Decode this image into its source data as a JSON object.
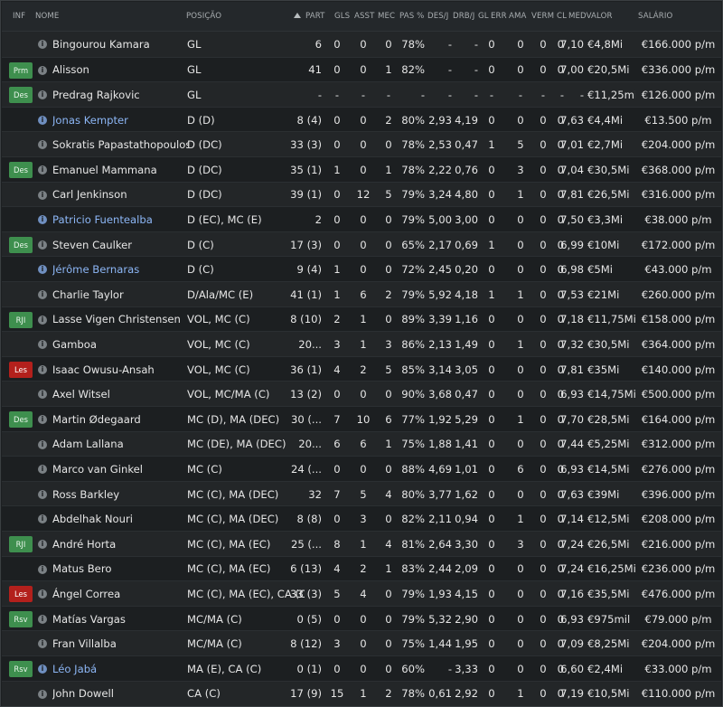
{
  "headers": {
    "inf": "INF",
    "nome": "NOME",
    "posicao": "POSIÇÃO",
    "part": "PART",
    "gls": "GLS",
    "asst": "ASST",
    "mec": "MEC",
    "pas": "PAS %",
    "desj": "DES/J",
    "drbj": "DRB/J",
    "gl": "GL",
    "err": "ERR",
    "ama": "AMA",
    "verm": "VERM",
    "cl": "CL",
    "medvalor": "MEDVALOR",
    "salario": "SALÁRIO"
  },
  "sort": {
    "column": "PART",
    "direction": "ascending"
  },
  "colors": {
    "badge_green": "#3e8f4e",
    "badge_red": "#b3201c",
    "loan_name": "#8cb6f5"
  },
  "players": [
    {
      "badge": "",
      "loan": false,
      "name": "Bingourou Kamara",
      "pos": "GL",
      "part": "6",
      "gls": "0",
      "asst": "0",
      "mec": "0",
      "pas": "78%",
      "desj": "-",
      "drbj": "-",
      "gl": "0",
      "err": "0",
      "ama": "0",
      "verm": "0",
      "cl": "7,10",
      "val": "€4,8Mi",
      "sal": "€166.000 p/m"
    },
    {
      "badge": "Prm",
      "loan": false,
      "name": "Alisson",
      "pos": "GL",
      "part": "41",
      "gls": "0",
      "asst": "0",
      "mec": "1",
      "pas": "82%",
      "desj": "-",
      "drbj": "-",
      "gl": "0",
      "err": "0",
      "ama": "0",
      "verm": "0",
      "cl": "7,00",
      "val": "€20,5Mi",
      "sal": "€336.000 p/m"
    },
    {
      "badge": "Des",
      "loan": false,
      "name": "Predrag Rajkovic",
      "pos": "GL",
      "part": "-",
      "gls": "-",
      "asst": "-",
      "mec": "-",
      "pas": "-",
      "desj": "-",
      "drbj": "-",
      "gl": "-",
      "err": "-",
      "ama": "-",
      "verm": "-",
      "cl": "-",
      "val": "€11,25mil",
      "sal": "€126.000 p/m"
    },
    {
      "badge": "",
      "loan": true,
      "name": "Jonas Kempter",
      "pos": "D (D)",
      "part": "8 (4)",
      "gls": "0",
      "asst": "0",
      "mec": "2",
      "pas": "80%",
      "desj": "2,93",
      "drbj": "4,19",
      "gl": "0",
      "err": "0",
      "ama": "0",
      "verm": "0",
      "cl": "7,63",
      "val": "€4,4Mi",
      "sal": "€13.500 p/m"
    },
    {
      "badge": "",
      "loan": false,
      "name": "Sokratis Papastathopoulos",
      "pos": "D (DC)",
      "part": "33 (3)",
      "gls": "0",
      "asst": "0",
      "mec": "0",
      "pas": "78%",
      "desj": "2,53",
      "drbj": "0,47",
      "gl": "1",
      "err": "5",
      "ama": "0",
      "verm": "0",
      "cl": "7,01",
      "val": "€2,7Mi",
      "sal": "€204.000 p/m"
    },
    {
      "badge": "Des",
      "loan": false,
      "name": "Emanuel Mammana",
      "pos": "D (DC)",
      "part": "35 (1)",
      "gls": "1",
      "asst": "0",
      "mec": "1",
      "pas": "78%",
      "desj": "2,22",
      "drbj": "0,76",
      "gl": "0",
      "err": "3",
      "ama": "0",
      "verm": "0",
      "cl": "7,04",
      "val": "€30,5Mi",
      "sal": "€368.000 p/m"
    },
    {
      "badge": "",
      "loan": false,
      "name": "Carl Jenkinson",
      "pos": "D (DC)",
      "part": "39 (1)",
      "gls": "0",
      "asst": "12",
      "mec": "5",
      "pas": "79%",
      "desj": "3,24",
      "drbj": "4,80",
      "gl": "0",
      "err": "1",
      "ama": "0",
      "verm": "0",
      "cl": "7,81",
      "val": "€26,5Mi",
      "sal": "€316.000 p/m"
    },
    {
      "badge": "",
      "loan": true,
      "name": "Patricio Fuentealba",
      "pos": "D (EC), MC (E)",
      "part": "2",
      "gls": "0",
      "asst": "0",
      "mec": "0",
      "pas": "79%",
      "desj": "5,00",
      "drbj": "3,00",
      "gl": "0",
      "err": "0",
      "ama": "0",
      "verm": "0",
      "cl": "7,50",
      "val": "€3,3Mi",
      "sal": "€38.000 p/m"
    },
    {
      "badge": "Des",
      "loan": false,
      "name": "Steven Caulker",
      "pos": "D (C)",
      "part": "17 (3)",
      "gls": "0",
      "asst": "0",
      "mec": "0",
      "pas": "65%",
      "desj": "2,17",
      "drbj": "0,69",
      "gl": "1",
      "err": "0",
      "ama": "0",
      "verm": "0",
      "cl": "6,99",
      "val": "€10Mi",
      "sal": "€172.000 p/m"
    },
    {
      "badge": "",
      "loan": true,
      "name": "Jérôme Bernaras",
      "pos": "D (C)",
      "part": "9 (4)",
      "gls": "1",
      "asst": "0",
      "mec": "0",
      "pas": "72%",
      "desj": "2,45",
      "drbj": "0,20",
      "gl": "0",
      "err": "0",
      "ama": "0",
      "verm": "0",
      "cl": "6,98",
      "val": "€5Mi",
      "sal": "€43.000 p/m"
    },
    {
      "badge": "",
      "loan": false,
      "name": "Charlie Taylor",
      "pos": "D/Ala/MC (E)",
      "part": "41 (1)",
      "gls": "1",
      "asst": "6",
      "mec": "2",
      "pas": "79%",
      "desj": "5,92",
      "drbj": "4,18",
      "gl": "1",
      "err": "1",
      "ama": "0",
      "verm": "0",
      "cl": "7,53",
      "val": "€21Mi",
      "sal": "€260.000 p/m"
    },
    {
      "badge": "RJI",
      "loan": false,
      "name": "Lasse Vigen Christensen",
      "pos": "VOL, MC (C)",
      "part": "8 (10)",
      "gls": "2",
      "asst": "1",
      "mec": "0",
      "pas": "89%",
      "desj": "3,39",
      "drbj": "1,16",
      "gl": "0",
      "err": "0",
      "ama": "0",
      "verm": "0",
      "cl": "7,18",
      "val": "€11,75Mi",
      "sal": "€158.000 p/m"
    },
    {
      "badge": "",
      "loan": false,
      "name": "Gamboa",
      "pos": "VOL, MC (C)",
      "part": "20...",
      "gls": "3",
      "asst": "1",
      "mec": "3",
      "pas": "86%",
      "desj": "2,13",
      "drbj": "1,49",
      "gl": "0",
      "err": "1",
      "ama": "0",
      "verm": "0",
      "cl": "7,32",
      "val": "€30,5Mi",
      "sal": "€364.000 p/m"
    },
    {
      "badge": "Les",
      "loan": false,
      "name": "Isaac Owusu-Ansah",
      "pos": "VOL, MC (C)",
      "part": "36 (1)",
      "gls": "4",
      "asst": "2",
      "mec": "5",
      "pas": "85%",
      "desj": "3,14",
      "drbj": "3,05",
      "gl": "0",
      "err": "0",
      "ama": "0",
      "verm": "0",
      "cl": "7,81",
      "val": "€35Mi",
      "sal": "€140.000 p/m"
    },
    {
      "badge": "",
      "loan": false,
      "name": "Axel Witsel",
      "pos": "VOL, MC/MA (C)",
      "part": "13 (2)",
      "gls": "0",
      "asst": "0",
      "mec": "0",
      "pas": "90%",
      "desj": "3,68",
      "drbj": "0,47",
      "gl": "0",
      "err": "0",
      "ama": "0",
      "verm": "0",
      "cl": "6,93",
      "val": "€14,75Mi",
      "sal": "€500.000 p/m"
    },
    {
      "badge": "Des",
      "loan": false,
      "name": "Martin Ødegaard",
      "pos": "MC (D), MA (DEC)",
      "part": "30 (...",
      "gls": "7",
      "asst": "10",
      "mec": "6",
      "pas": "77%",
      "desj": "1,92",
      "drbj": "5,29",
      "gl": "0",
      "err": "1",
      "ama": "0",
      "verm": "0",
      "cl": "7,70",
      "val": "€28,5Mi",
      "sal": "€164.000 p/m"
    },
    {
      "badge": "",
      "loan": false,
      "name": "Adam Lallana",
      "pos": "MC (DE), MA (DEC)",
      "part": "20...",
      "gls": "6",
      "asst": "6",
      "mec": "1",
      "pas": "75%",
      "desj": "1,88",
      "drbj": "1,41",
      "gl": "0",
      "err": "0",
      "ama": "0",
      "verm": "0",
      "cl": "7,44",
      "val": "€5,25Mi",
      "sal": "€312.000 p/m"
    },
    {
      "badge": "",
      "loan": false,
      "name": "Marco van Ginkel",
      "pos": "MC (C)",
      "part": "24 (...",
      "gls": "0",
      "asst": "0",
      "mec": "0",
      "pas": "88%",
      "desj": "4,69",
      "drbj": "1,01",
      "gl": "0",
      "err": "6",
      "ama": "0",
      "verm": "0",
      "cl": "6,93",
      "val": "€14,5Mi",
      "sal": "€276.000 p/m"
    },
    {
      "badge": "",
      "loan": false,
      "name": "Ross Barkley",
      "pos": "MC (C), MA (DEC)",
      "part": "32",
      "gls": "7",
      "asst": "5",
      "mec": "4",
      "pas": "80%",
      "desj": "3,77",
      "drbj": "1,62",
      "gl": "0",
      "err": "0",
      "ama": "0",
      "verm": "0",
      "cl": "7,63",
      "val": "€39Mi",
      "sal": "€396.000 p/m"
    },
    {
      "badge": "",
      "loan": false,
      "name": "Abdelhak Nouri",
      "pos": "MC (C), MA (DEC)",
      "part": "8 (8)",
      "gls": "0",
      "asst": "3",
      "mec": "0",
      "pas": "82%",
      "desj": "2,11",
      "drbj": "0,94",
      "gl": "0",
      "err": "1",
      "ama": "0",
      "verm": "0",
      "cl": "7,14",
      "val": "€12,5Mi",
      "sal": "€208.000 p/m"
    },
    {
      "badge": "RJI",
      "loan": false,
      "name": "André Horta",
      "pos": "MC (C), MA (EC)",
      "part": "25 (...",
      "gls": "8",
      "asst": "1",
      "mec": "4",
      "pas": "81%",
      "desj": "2,64",
      "drbj": "3,30",
      "gl": "0",
      "err": "3",
      "ama": "0",
      "verm": "0",
      "cl": "7,24",
      "val": "€26,5Mi",
      "sal": "€216.000 p/m"
    },
    {
      "badge": "",
      "loan": false,
      "name": "Matus Bero",
      "pos": "MC (C), MA (EC)",
      "part": "6 (13)",
      "gls": "4",
      "asst": "2",
      "mec": "1",
      "pas": "83%",
      "desj": "2,44",
      "drbj": "2,09",
      "gl": "0",
      "err": "0",
      "ama": "0",
      "verm": "0",
      "cl": "7,24",
      "val": "€16,25Mi",
      "sal": "€236.000 p/m"
    },
    {
      "badge": "Les",
      "loan": false,
      "name": "Ángel Correa",
      "pos": "MC (C), MA (EC), CA (C)",
      "part": "33 (3)",
      "gls": "5",
      "asst": "4",
      "mec": "0",
      "pas": "79%",
      "desj": "1,93",
      "drbj": "4,15",
      "gl": "0",
      "err": "0",
      "ama": "0",
      "verm": "0",
      "cl": "7,16",
      "val": "€35,5Mi",
      "sal": "€476.000 p/m"
    },
    {
      "badge": "Rsv",
      "loan": false,
      "name": "Matías Vargas",
      "pos": "MC/MA (C)",
      "part": "0 (5)",
      "gls": "0",
      "asst": "0",
      "mec": "0",
      "pas": "79%",
      "desj": "5,32",
      "drbj": "2,90",
      "gl": "0",
      "err": "0",
      "ama": "0",
      "verm": "0",
      "cl": "6,93",
      "val": "€975mil",
      "sal": "€79.000 p/m"
    },
    {
      "badge": "",
      "loan": false,
      "name": "Fran Villalba",
      "pos": "MC/MA (C)",
      "part": "8 (12)",
      "gls": "3",
      "asst": "0",
      "mec": "0",
      "pas": "75%",
      "desj": "1,44",
      "drbj": "1,95",
      "gl": "0",
      "err": "0",
      "ama": "0",
      "verm": "0",
      "cl": "7,09",
      "val": "€8,25Mi",
      "sal": "€204.000 p/m"
    },
    {
      "badge": "Rsv",
      "loan": true,
      "name": "Léo Jabá",
      "pos": "MA (E), CA (C)",
      "part": "0 (1)",
      "gls": "0",
      "asst": "0",
      "mec": "0",
      "pas": "60%",
      "desj": "-",
      "drbj": "3,33",
      "gl": "0",
      "err": "0",
      "ama": "0",
      "verm": "0",
      "cl": "6,60",
      "val": "€2,4Mi",
      "sal": "€33.000 p/m"
    },
    {
      "badge": "",
      "loan": false,
      "name": "John Dowell",
      "pos": "CA (C)",
      "part": "17 (9)",
      "gls": "15",
      "asst": "1",
      "mec": "2",
      "pas": "78%",
      "desj": "0,61",
      "drbj": "2,92",
      "gl": "0",
      "err": "1",
      "ama": "0",
      "verm": "0",
      "cl": "7,19",
      "val": "€10,5Mi",
      "sal": "€110.000 p/m"
    }
  ]
}
